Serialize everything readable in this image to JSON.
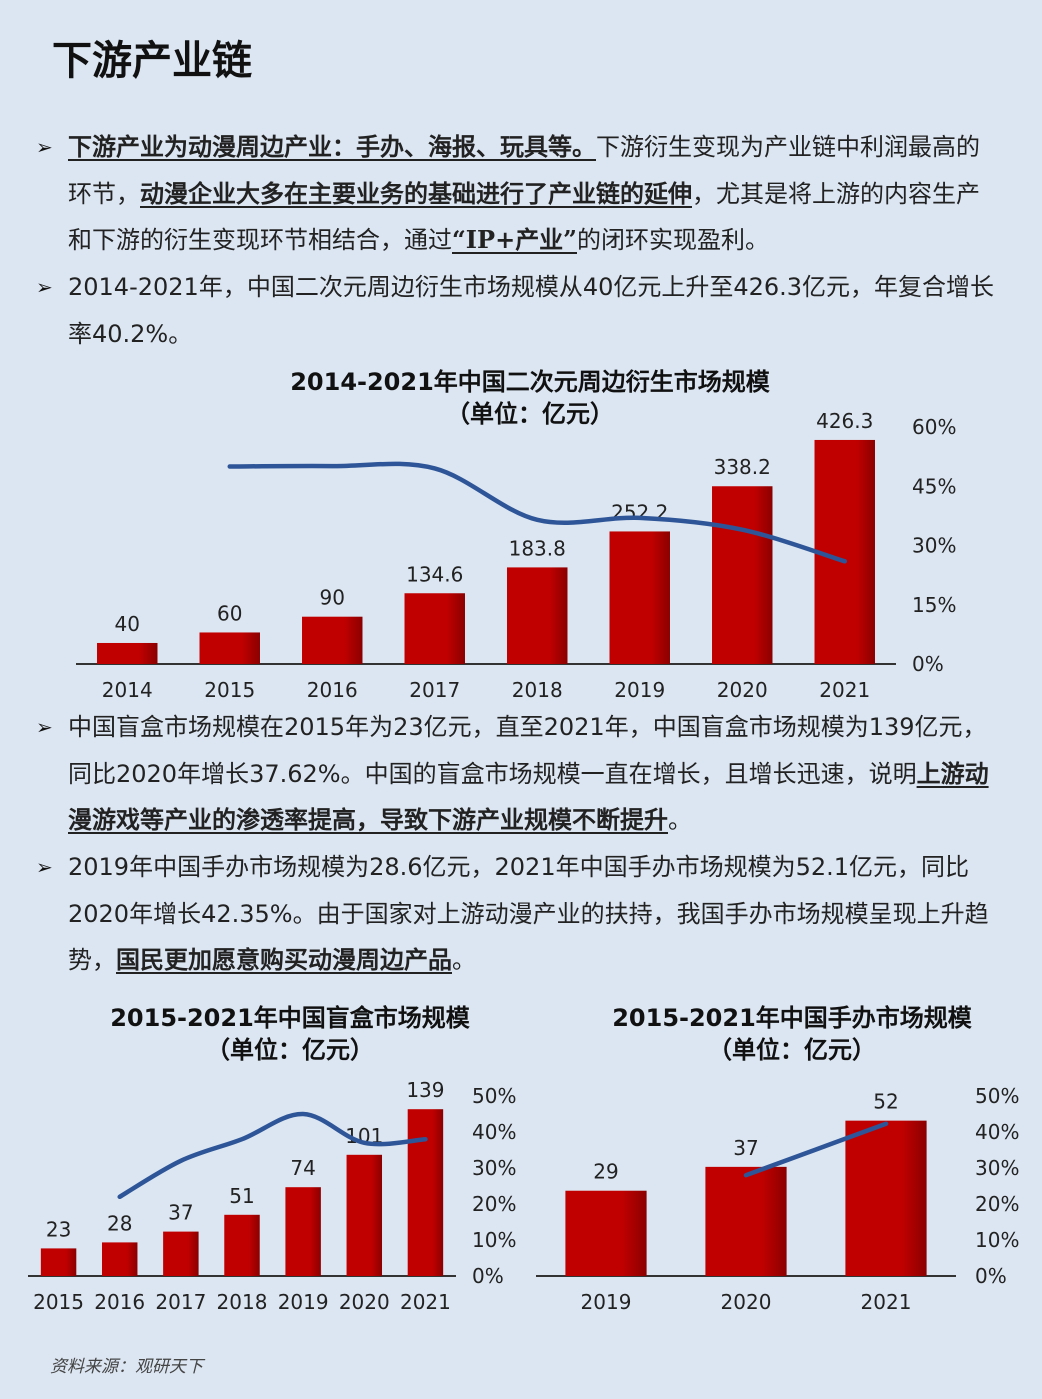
{
  "page": {
    "title": "下游产业链",
    "source": "资料来源：观研天下"
  },
  "bullets": [
    {
      "marker": "➢",
      "u1": "下游产业为动漫周边产业：手办、海报、玩具等。",
      "t1": "下游衍生变现为产业链中利润最高的环节，",
      "u2": "动漫企业大多在主要业务的基础进行了产业链的延伸",
      "t2": "，尤其是将上游的内容生产和下游的衍生变现环节相结合，通过",
      "u3": "“IP+产业”",
      "t3": "的闭环实现盈利。"
    },
    {
      "marker": "➢",
      "text": "2014-2021年，中国二次元周边衍生市场规模从40亿元上升至426.3亿元，年复合增长率40.2%。"
    },
    {
      "marker": "➢",
      "t1": "中国盲盒市场规模在2015年为23亿元，直至2021年，中国盲盒市场规模为139亿元，同比2020年增长37.62%。中国的盲盒市场规模一直在增长，且增长迅速，说明",
      "u1": "上游动漫游戏等产业的渗透率提高，导致下游产业规模不断提升",
      "t2": "。"
    },
    {
      "marker": "➢",
      "t1": "2019年中国手办市场规模为28.6亿元，2021年中国手办市场规模为52.1亿元，同比2020年增长42.35%。由于国家对上游动漫产业的扶持，我国手办市场规模呈现上升趋势，",
      "u1": "国民更加愿意购买动漫周边产品",
      "t2": "。"
    }
  ],
  "colors": {
    "bar": "#c00000",
    "bar_dark": "#8b0000",
    "line": "#2e5597",
    "axis": "#333333"
  },
  "chart_data": [
    {
      "type": "bar",
      "title": "2014-2021年中国二次元周边衍生市场规模",
      "subtitle": "（单位：亿元）",
      "categories": [
        "2014",
        "2015",
        "2016",
        "2017",
        "2018",
        "2019",
        "2020",
        "2021"
      ],
      "values": [
        40,
        60,
        90,
        134.6,
        183.8,
        252.2,
        338.2,
        426.3
      ],
      "value_labels": [
        "40",
        "60",
        "90",
        "134.6",
        "183.8",
        "252.2",
        "338.2",
        "426.3"
      ],
      "ylim": [
        0,
        430
      ],
      "line": {
        "axis": "right",
        "x": [
          "2015",
          "2016",
          "2017",
          "2018",
          "2019",
          "2020",
          "2021"
        ],
        "values": [
          50,
          50.1,
          49.5,
          36.5,
          37,
          34,
          26
        ]
      },
      "y2lim": [
        0,
        60
      ],
      "y2ticks": [
        "0%",
        "15%",
        "30%",
        "45%",
        "60%"
      ],
      "grid": false
    },
    {
      "type": "bar",
      "title": "2015-2021年中国盲盒市场规模",
      "subtitle": "（单位：亿元）",
      "categories": [
        "2015",
        "2016",
        "2017",
        "2018",
        "2019",
        "2020",
        "2021"
      ],
      "values": [
        23,
        28,
        37,
        51,
        74,
        101,
        139
      ],
      "value_labels": [
        "23",
        "28",
        "37",
        "51",
        "74",
        "101",
        "139"
      ],
      "ylim": [
        0,
        140
      ],
      "line": {
        "axis": "right",
        "x": [
          "2016",
          "2017",
          "2018",
          "2019",
          "2020",
          "2021"
        ],
        "values": [
          22,
          32,
          38,
          45,
          37,
          38
        ]
      },
      "y2lim": [
        0,
        50
      ],
      "y2ticks": [
        "0%",
        "10%",
        "20%",
        "30%",
        "40%",
        "50%"
      ],
      "grid": false
    },
    {
      "type": "bar",
      "title": "2015-2021年中国手办市场规模",
      "subtitle": "（单位：亿元）",
      "categories": [
        "2019",
        "2020",
        "2021"
      ],
      "values": [
        28.6,
        36.6,
        52.1
      ],
      "value_labels": [
        "29",
        "37",
        "52"
      ],
      "ylim": [
        0,
        55
      ],
      "line": {
        "axis": "right",
        "x": [
          "2020",
          "2021"
        ],
        "values": [
          28,
          42.3
        ]
      },
      "y2lim": [
        0,
        50
      ],
      "y2ticks": [
        "0%",
        "10%",
        "20%",
        "30%",
        "40%",
        "50%"
      ],
      "grid": false
    }
  ]
}
